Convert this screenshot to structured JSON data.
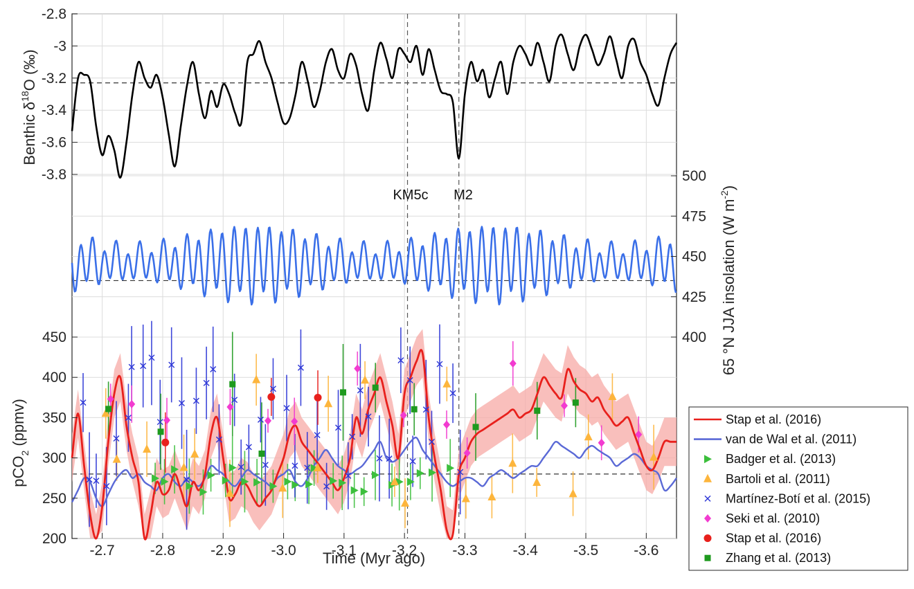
{
  "chart_data": {
    "type": "line",
    "xlabel": "Time (Myr ago)",
    "xlim": [
      -2.65,
      -3.65
    ],
    "x_ticks": [
      "-2.7",
      "-2.8",
      "-2.9",
      "-3.0",
      "-3.1",
      "-3.2",
      "-3.3",
      "-3.4",
      "-3.5",
      "-3.6"
    ],
    "x_tick_values": [
      -2.7,
      -2.8,
      -2.9,
      -3.0,
      -3.1,
      -3.2,
      -3.3,
      -3.4,
      -3.5,
      -3.6
    ],
    "grid": true,
    "annotations": [
      {
        "text": "KM5c",
        "x": -3.205
      },
      {
        "text": "M2",
        "x": -3.29
      }
    ],
    "vertical_lines": [
      -3.205,
      -3.29
    ],
    "panels": [
      {
        "id": "d18o",
        "ylabel_prefix": "Benthic δ",
        "ylabel_sup": "18",
        "ylabel_suffix": "O (‰)",
        "y_ticks": [
          "-2.8",
          "-3",
          "-3.2",
          "-3.4",
          "-3.6",
          "-3.8"
        ],
        "y_tick_values": [
          -2.8,
          -3.0,
          -3.2,
          -3.4,
          -3.6,
          -3.8
        ],
        "ylim": [
          -3.9,
          -2.8
        ],
        "inverted": true,
        "reference_line": -3.23,
        "series": [
          {
            "color": "#000000",
            "x": [
              -2.65,
              -2.66,
              -2.67,
              -2.68,
              -2.69,
              -2.7,
              -2.71,
              -2.72,
              -2.73,
              -2.74,
              -2.75,
              -2.76,
              -2.77,
              -2.78,
              -2.79,
              -2.8,
              -2.81,
              -2.82,
              -2.83,
              -2.84,
              -2.85,
              -2.86,
              -2.87,
              -2.88,
              -2.89,
              -2.9,
              -2.91,
              -2.92,
              -2.93,
              -2.94,
              -2.95,
              -2.96,
              -2.97,
              -2.98,
              -2.99,
              -3.0,
              -3.01,
              -3.02,
              -3.03,
              -3.04,
              -3.05,
              -3.06,
              -3.07,
              -3.08,
              -3.09,
              -3.1,
              -3.11,
              -3.12,
              -3.13,
              -3.14,
              -3.15,
              -3.16,
              -3.17,
              -3.18,
              -3.19,
              -3.2,
              -3.21,
              -3.22,
              -3.23,
              -3.24,
              -3.25,
              -3.26,
              -3.27,
              -3.28,
              -3.29,
              -3.3,
              -3.31,
              -3.32,
              -3.33,
              -3.34,
              -3.35,
              -3.36,
              -3.37,
              -3.38,
              -3.39,
              -3.4,
              -3.41,
              -3.42,
              -3.43,
              -3.44,
              -3.45,
              -3.46,
              -3.47,
              -3.48,
              -3.49,
              -3.5,
              -3.51,
              -3.52,
              -3.53,
              -3.54,
              -3.55,
              -3.56,
              -3.57,
              -3.58,
              -3.59,
              -3.6,
              -3.61,
              -3.62,
              -3.63,
              -3.64,
              -3.65
            ],
            "y": [
              -3.53,
              -3.2,
              -3.18,
              -3.22,
              -3.5,
              -3.68,
              -3.56,
              -3.65,
              -3.82,
              -3.6,
              -3.3,
              -3.1,
              -3.2,
              -3.26,
              -3.18,
              -3.32,
              -3.55,
              -3.75,
              -3.5,
              -3.25,
              -3.1,
              -3.3,
              -3.45,
              -3.28,
              -3.38,
              -3.24,
              -3.3,
              -3.42,
              -3.48,
              -3.1,
              -3.05,
              -2.97,
              -3.1,
              -3.2,
              -3.35,
              -3.48,
              -3.45,
              -3.3,
              -3.1,
              -3.22,
              -3.38,
              -3.28,
              -3.1,
              -3.02,
              -3.15,
              -3.2,
              -3.05,
              -3.12,
              -3.3,
              -3.4,
              -3.15,
              -2.98,
              -3.08,
              -3.2,
              -3.02,
              -3.05,
              -3.1,
              -3.0,
              -3.18,
              -3.02,
              -3.15,
              -3.28,
              -3.3,
              -3.35,
              -3.7,
              -3.3,
              -3.1,
              -3.22,
              -3.15,
              -3.32,
              -3.2,
              -3.1,
              -3.3,
              -3.1,
              -3.0,
              -3.05,
              -3.12,
              -2.98,
              -3.1,
              -3.22,
              -3.0,
              -2.93,
              -3.05,
              -3.15,
              -3.0,
              -2.93,
              -3.02,
              -3.12,
              -3.05,
              -2.94,
              -3.08,
              -3.2,
              -3.0,
              -2.96,
              -3.1,
              -3.18,
              -3.3,
              -3.37,
              -3.2,
              -3.05,
              -2.98
            ]
          }
        ]
      },
      {
        "id": "insolation",
        "ylabel": "65 °N JJA insolation (W m",
        "ylabel_sup": "-2",
        "ylabel_end": ")",
        "axis_side": "right",
        "y_ticks": [
          "400",
          "425",
          "450",
          "475",
          "500"
        ],
        "y_tick_values": [
          400,
          425,
          450,
          475,
          500
        ],
        "ylim": [
          400,
          500
        ],
        "reference_line": 435,
        "series": [
          {
            "color": "#3a6fe8",
            "period": 0.0195,
            "mean": 446,
            "amplitude": 21,
            "modulation": 0.4
          }
        ]
      },
      {
        "id": "pco2",
        "ylabel_prefix": "pCO",
        "ylabel_sub": "2",
        "ylabel_suffix": " (ppmv)",
        "y_ticks": [
          "200",
          "250",
          "300",
          "350",
          "400",
          "450"
        ],
        "y_tick_values": [
          200,
          250,
          300,
          350,
          400,
          450
        ],
        "ylim": [
          200,
          470
        ],
        "reference_line": 280,
        "lines": [
          {
            "name": "Stap et al. (2016)",
            "color": "#e8201c",
            "band_color": "#f7a9a6",
            "band_halfwidth": 30,
            "x": [
              -2.65,
              -2.66,
              -2.67,
              -2.68,
              -2.69,
              -2.7,
              -2.71,
              -2.72,
              -2.73,
              -2.74,
              -2.75,
              -2.76,
              -2.77,
              -2.78,
              -2.79,
              -2.8,
              -2.81,
              -2.82,
              -2.83,
              -2.84,
              -2.85,
              -2.86,
              -2.87,
              -2.88,
              -2.89,
              -2.9,
              -2.91,
              -2.92,
              -2.93,
              -2.94,
              -2.95,
              -2.96,
              -2.97,
              -2.98,
              -2.99,
              -3.0,
              -3.01,
              -3.02,
              -3.03,
              -3.04,
              -3.05,
              -3.06,
              -3.07,
              -3.08,
              -3.09,
              -3.1,
              -3.11,
              -3.12,
              -3.13,
              -3.14,
              -3.15,
              -3.16,
              -3.17,
              -3.18,
              -3.19,
              -3.2,
              -3.21,
              -3.22,
              -3.23,
              -3.24,
              -3.25,
              -3.26,
              -3.27,
              -3.28,
              -3.29,
              -3.3,
              -3.31,
              -3.32,
              -3.33,
              -3.34,
              -3.35,
              -3.36,
              -3.37,
              -3.38,
              -3.39,
              -3.4,
              -3.41,
              -3.42,
              -3.43,
              -3.44,
              -3.45,
              -3.46,
              -3.47,
              -3.48,
              -3.49,
              -3.5,
              -3.51,
              -3.52,
              -3.53,
              -3.54,
              -3.55,
              -3.56,
              -3.57,
              -3.58,
              -3.59,
              -3.6,
              -3.61,
              -3.62,
              -3.63,
              -3.64,
              -3.65
            ],
            "y": [
              300,
              355,
              290,
              230,
              200,
              240,
              320,
              380,
              400,
              340,
              300,
              270,
              200,
              230,
              270,
              255,
              260,
              280,
              260,
              240,
              270,
              260,
              280,
              330,
              350,
              300,
              250,
              255,
              270,
              265,
              250,
              240,
              250,
              260,
              280,
              300,
              330,
              340,
              320,
              310,
              300,
              290,
              280,
              270,
              260,
              275,
              300,
              350,
              330,
              360,
              380,
              400,
              370,
              340,
              300,
              380,
              400,
              420,
              430,
              350,
              300,
              260,
              210,
              205,
              280,
              300,
              320,
              330,
              335,
              340,
              345,
              350,
              355,
              360,
              350,
              355,
              360,
              380,
              400,
              390,
              380,
              375,
              410,
              395,
              385,
              380,
              370,
              375,
              360,
              350,
              340,
              345,
              350,
              330,
              310,
              290,
              285,
              300,
              320,
              320,
              320
            ]
          },
          {
            "name": "van de Wal et al. (2011)",
            "color": "#5a69d6",
            "x": [
              -2.65,
              -2.66,
              -2.67,
              -2.68,
              -2.69,
              -2.7,
              -2.71,
              -2.72,
              -2.73,
              -2.74,
              -2.75,
              -2.76,
              -2.77,
              -2.78,
              -2.79,
              -2.8,
              -2.81,
              -2.82,
              -2.83,
              -2.84,
              -2.85,
              -2.86,
              -2.87,
              -2.88,
              -2.89,
              -2.9,
              -2.91,
              -2.92,
              -2.93,
              -2.94,
              -2.95,
              -2.96,
              -2.97,
              -2.98,
              -2.99,
              -3.0,
              -3.01,
              -3.02,
              -3.03,
              -3.04,
              -3.05,
              -3.06,
              -3.07,
              -3.08,
              -3.09,
              -3.1,
              -3.11,
              -3.12,
              -3.13,
              -3.14,
              -3.15,
              -3.16,
              -3.17,
              -3.18,
              -3.19,
              -3.2,
              -3.21,
              -3.22,
              -3.23,
              -3.24,
              -3.25,
              -3.26,
              -3.27,
              -3.28,
              -3.29,
              -3.3,
              -3.31,
              -3.32,
              -3.33,
              -3.34,
              -3.35,
              -3.36,
              -3.37,
              -3.38,
              -3.39,
              -3.4,
              -3.41,
              -3.42,
              -3.43,
              -3.44,
              -3.45,
              -3.46,
              -3.47,
              -3.48,
              -3.49,
              -3.5,
              -3.51,
              -3.52,
              -3.53,
              -3.54,
              -3.55,
              -3.56,
              -3.57,
              -3.58,
              -3.59,
              -3.6,
              -3.61,
              -3.62,
              -3.63,
              -3.64,
              -3.65
            ],
            "y": [
              245,
              260,
              275,
              270,
              250,
              240,
              255,
              270,
              280,
              285,
              275,
              280,
              270,
              265,
              260,
              275,
              280,
              270,
              265,
              275,
              270,
              265,
              275,
              290,
              285,
              280,
              270,
              265,
              275,
              285,
              280,
              275,
              270,
              265,
              275,
              280,
              285,
              270,
              265,
              275,
              290,
              300,
              310,
              300,
              290,
              285,
              280,
              285,
              290,
              300,
              310,
              320,
              300,
              295,
              300,
              310,
              320,
              325,
              310,
              300,
              290,
              280,
              270,
              265,
              270,
              275,
              275,
              270,
              265,
              275,
              280,
              285,
              280,
              275,
              280,
              285,
              290,
              290,
              300,
              310,
              320,
              315,
              310,
              305,
              300,
              310,
              315,
              310,
              305,
              300,
              290,
              295,
              300,
              305,
              300,
              290,
              285,
              280,
              260,
              265,
              275
            ]
          }
        ],
        "scatter": [
          {
            "name": "Badger et al. (2013)",
            "color": "#3cbf3c",
            "marker": "triangle-right"
          },
          {
            "name": "Bartoli et al. (2011)",
            "color": "#fdb53c",
            "marker": "triangle-up"
          },
          {
            "name": "Martínez-Botí et al. (2015)",
            "color": "#2b35d6",
            "marker": "x"
          },
          {
            "name": "Seki et al. (2010)",
            "color": "#f23bd0",
            "marker": "diamond"
          },
          {
            "name": "Stap et al. (2016)",
            "color": "#e8201c",
            "marker": "circle"
          },
          {
            "name": "Zhang et al. (2013)",
            "color": "#1e9a1e",
            "marker": "square"
          }
        ]
      }
    ],
    "legend": {
      "placement": "right",
      "entries": [
        {
          "label": "Stap et al. (2016)",
          "color": "#e8201c",
          "marker": "line"
        },
        {
          "label": "van de Wal et al. (2011)",
          "color": "#5a69d6",
          "marker": "line"
        },
        {
          "label": "Badger et al. (2013)",
          "color": "#3cbf3c",
          "marker": "triangle-right"
        },
        {
          "label": "Bartoli et al. (2011)",
          "color": "#fdb53c",
          "marker": "triangle-up"
        },
        {
          "label": "Martínez-Botí et al. (2015)",
          "color": "#2b35d6",
          "marker": "x"
        },
        {
          "label": "Seki et al. (2010)",
          "color": "#f23bd0",
          "marker": "diamond"
        },
        {
          "label": "Stap et al. (2016)",
          "color": "#e8201c",
          "marker": "circle"
        },
        {
          "label": "Zhang et al. (2013)",
          "color": "#1e9a1e",
          "marker": "square"
        }
      ]
    }
  }
}
